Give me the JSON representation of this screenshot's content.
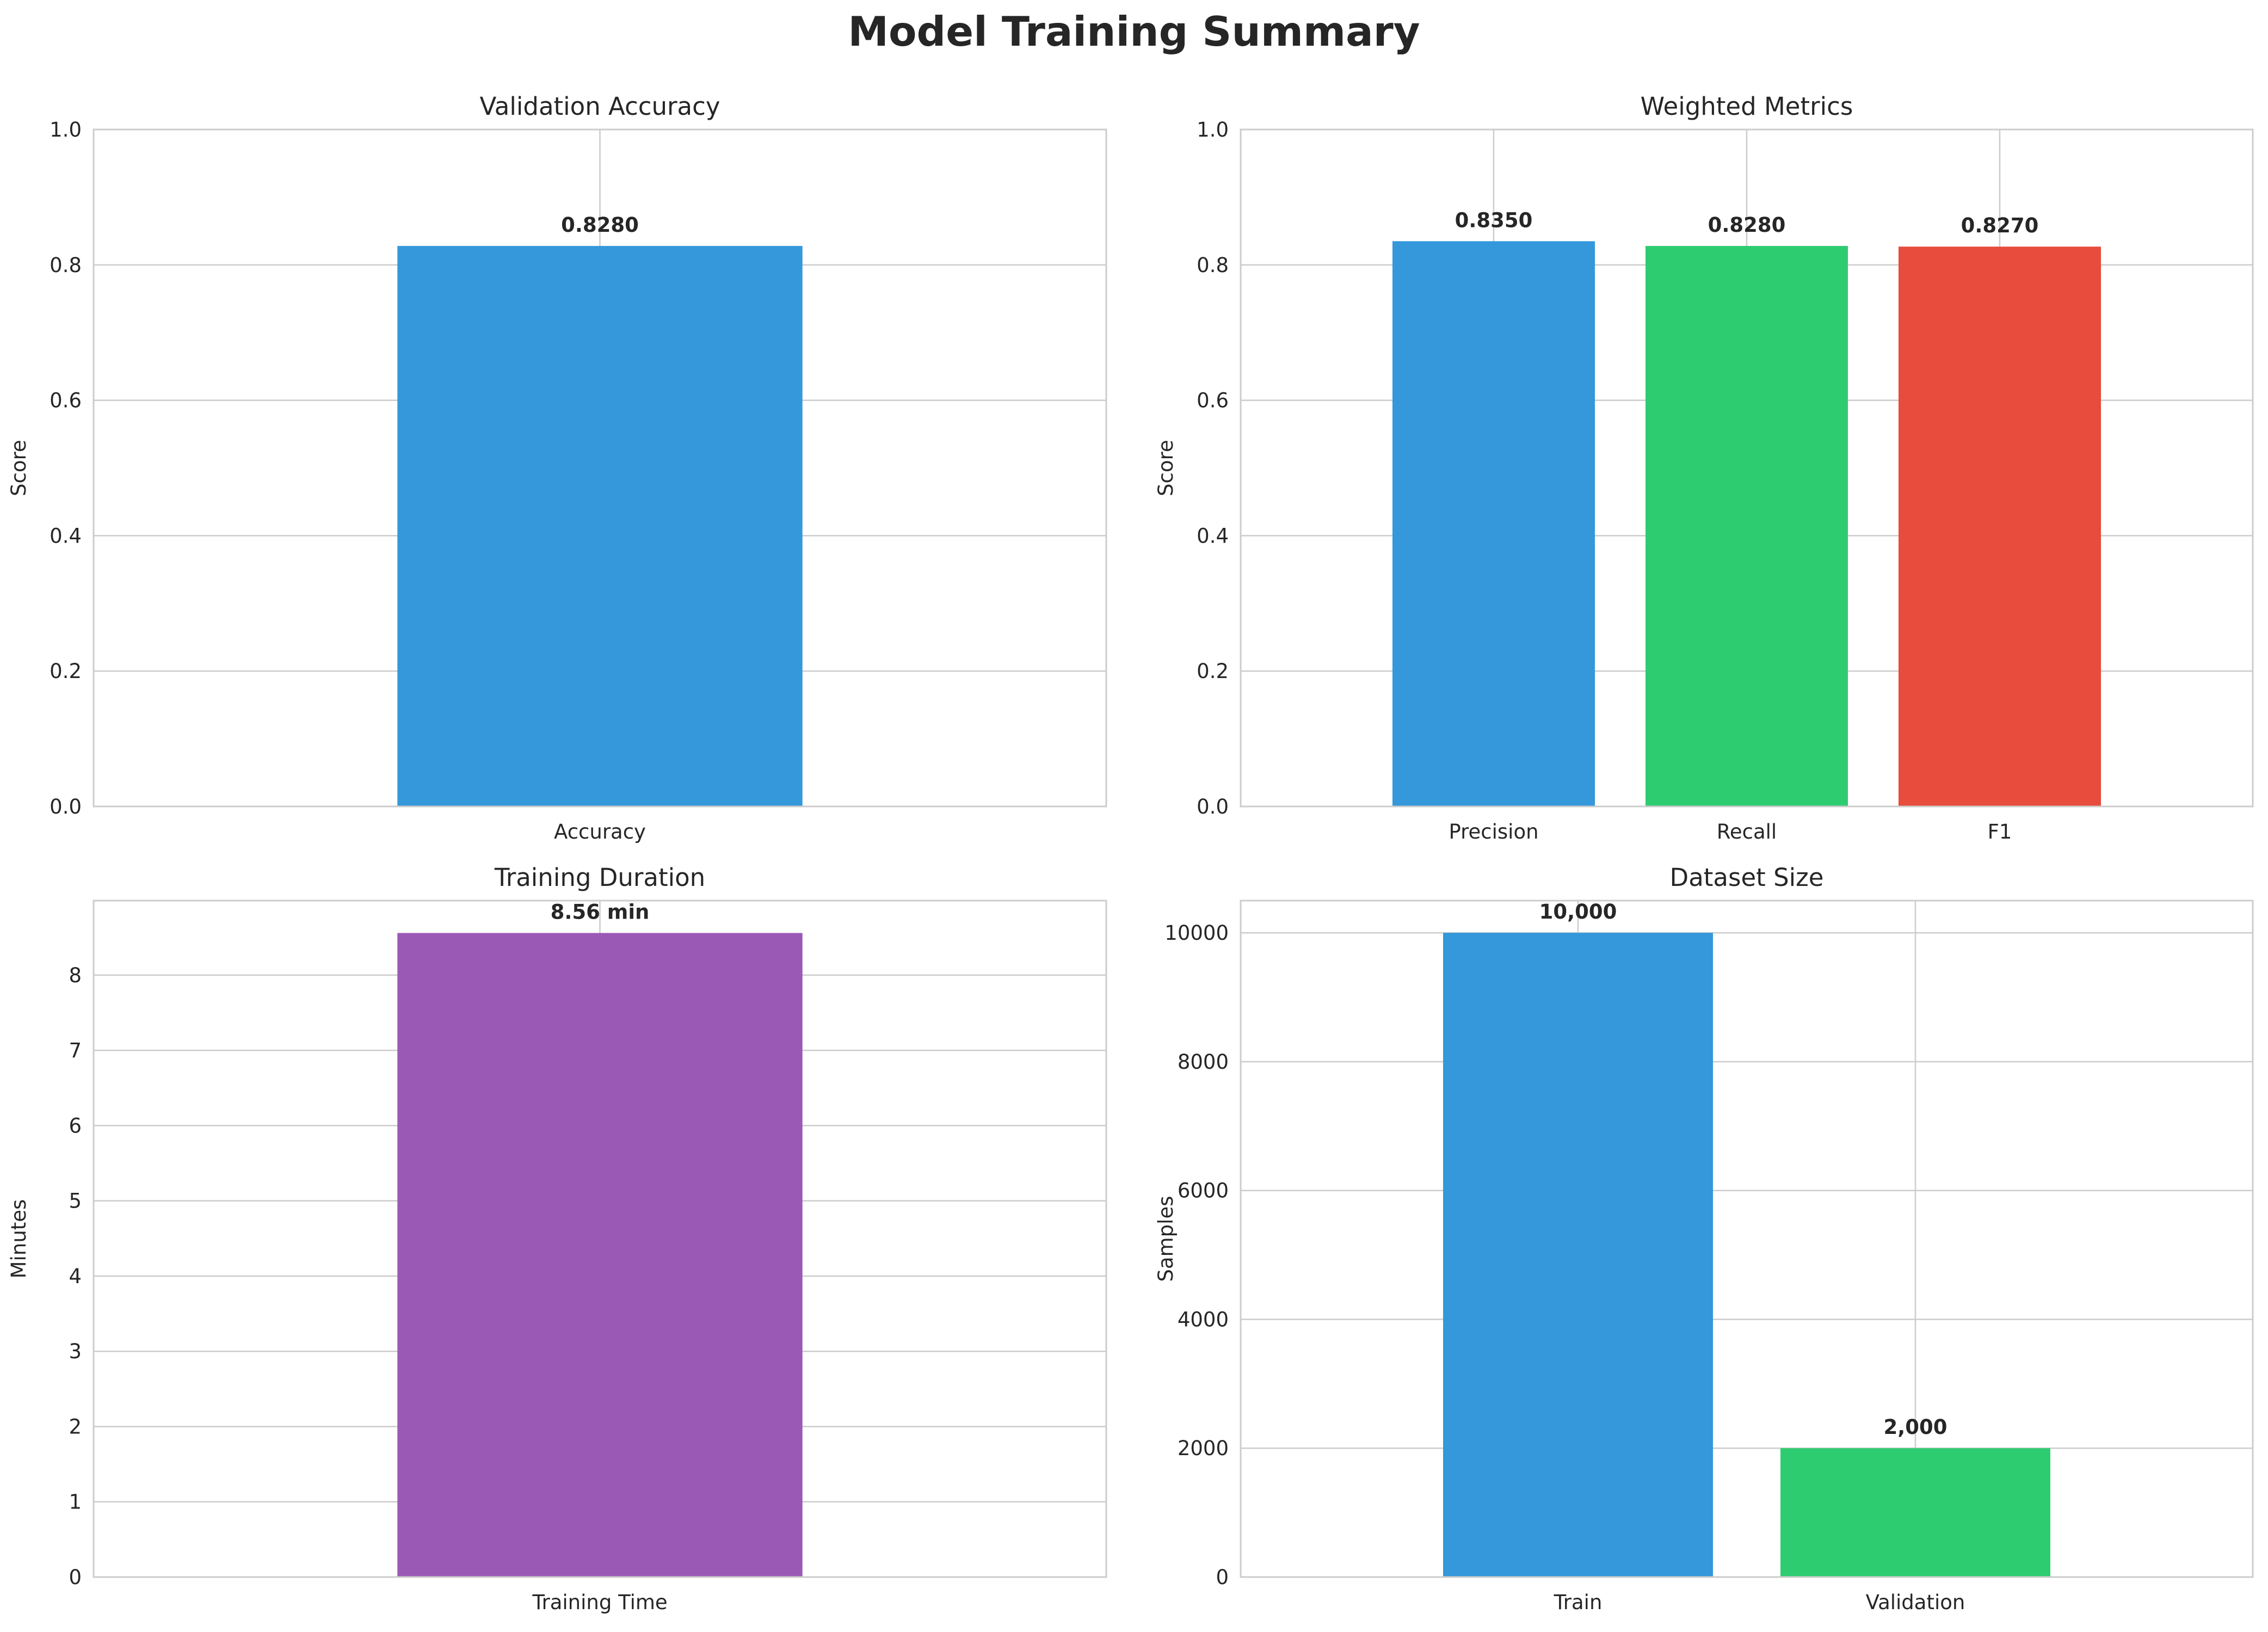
{
  "suptitle": "Model Training Summary",
  "colors": {
    "blue": "#3498db",
    "green": "#2ecc71",
    "red": "#e74c3c",
    "purple": "#9b59b6",
    "grid": "#cccccc",
    "frame": "#cccccc",
    "text": "#262626"
  },
  "chart_data": [
    {
      "id": "accuracy",
      "type": "bar",
      "title": "Validation Accuracy",
      "xlabel": "",
      "ylabel": "Score",
      "categories": [
        "Accuracy"
      ],
      "values": [
        0.828
      ],
      "value_labels": [
        "0.8280"
      ],
      "bar_colors": [
        "#3498db"
      ],
      "ylim": [
        0,
        1.0
      ],
      "yticks": [
        0,
        0.2,
        0.4,
        0.6,
        0.8,
        1.0
      ],
      "ytick_labels": [
        "0.0",
        "0.2",
        "0.4",
        "0.6",
        "0.8",
        "1.0"
      ],
      "grid": true
    },
    {
      "id": "weighted",
      "type": "bar",
      "title": "Weighted Metrics",
      "xlabel": "",
      "ylabel": "Score",
      "categories": [
        "Precision",
        "Recall",
        "F1"
      ],
      "values": [
        0.835,
        0.828,
        0.827
      ],
      "value_labels": [
        "0.8350",
        "0.8280",
        "0.8270"
      ],
      "bar_colors": [
        "#3498db",
        "#2ecc71",
        "#e74c3c"
      ],
      "ylim": [
        0,
        1.0
      ],
      "yticks": [
        0,
        0.2,
        0.4,
        0.6,
        0.8,
        1.0
      ],
      "ytick_labels": [
        "0.0",
        "0.2",
        "0.4",
        "0.6",
        "0.8",
        "1.0"
      ],
      "grid": true
    },
    {
      "id": "duration",
      "type": "bar",
      "title": "Training Duration",
      "xlabel": "",
      "ylabel": "Minutes",
      "categories": [
        "Training Time"
      ],
      "values": [
        8.56
      ],
      "value_labels": [
        "8.56 min"
      ],
      "bar_colors": [
        "#9b59b6"
      ],
      "ylim": [
        0,
        8.99
      ],
      "yticks": [
        0,
        1,
        2,
        3,
        4,
        5,
        6,
        7,
        8
      ],
      "ytick_labels": [
        "0",
        "1",
        "2",
        "3",
        "4",
        "5",
        "6",
        "7",
        "8"
      ],
      "grid": true
    },
    {
      "id": "dataset",
      "type": "bar",
      "title": "Dataset Size",
      "xlabel": "",
      "ylabel": "Samples",
      "categories": [
        "Train",
        "Validation"
      ],
      "values": [
        10000,
        2000
      ],
      "value_labels": [
        "10,000",
        "2,000"
      ],
      "bar_colors": [
        "#3498db",
        "#2ecc71"
      ],
      "ylim": [
        0,
        10500
      ],
      "yticks": [
        0,
        2000,
        4000,
        6000,
        8000,
        10000
      ],
      "ytick_labels": [
        "0",
        "2000",
        "4000",
        "6000",
        "8000",
        "10000"
      ],
      "grid": true
    }
  ]
}
